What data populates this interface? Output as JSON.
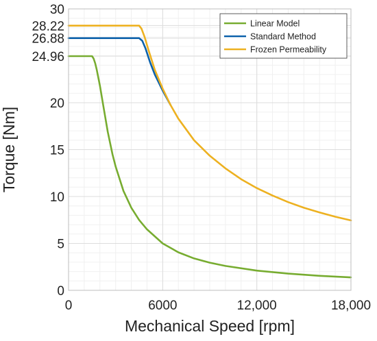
{
  "chart_data": {
    "type": "line",
    "xlabel": "Mechanical Speed [rpm]",
    "ylabel": "Torque [Nm]",
    "xlim": [
      0,
      18000
    ],
    "ylim": [
      0,
      30
    ],
    "x_ticks": [
      0,
      6000,
      12000,
      18000
    ],
    "x_tick_labels": [
      "0",
      "6000",
      "12,000",
      "18,000"
    ],
    "y_ticks": [
      0,
      5,
      10,
      15,
      20,
      24.96,
      26.88,
      28.22,
      30
    ],
    "y_tick_labels": [
      "0",
      "5",
      "10",
      "15",
      "20",
      "24.96",
      "26.88",
      "28.22",
      "30"
    ],
    "grid": true,
    "minor_grid": true,
    "legend_position": "top-right",
    "series": [
      {
        "name": "Linear Model",
        "color": "#77ac30",
        "x": [
          0,
          1500,
          1600,
          1700,
          1800,
          2000,
          2200,
          2500,
          2800,
          3000,
          3500,
          4000,
          4500,
          5000,
          6000,
          7000,
          8000,
          9000,
          10000,
          12000,
          14000,
          16000,
          18000
        ],
        "y": [
          24.96,
          24.96,
          24.7,
          24.2,
          23.5,
          21.8,
          19.8,
          16.9,
          14.5,
          13.2,
          10.6,
          8.8,
          7.5,
          6.5,
          5.0,
          4.05,
          3.4,
          2.95,
          2.6,
          2.1,
          1.78,
          1.55,
          1.38
        ]
      },
      {
        "name": "Standard Method",
        "color": "#0d62ab",
        "x": [
          0,
          4500,
          4700,
          4900,
          5200,
          5500,
          6000,
          6500
        ],
        "y": [
          26.88,
          26.88,
          26.6,
          25.8,
          24.3,
          23.0,
          21.3,
          19.75
        ]
      },
      {
        "name": "Frozen Permeability",
        "color": "#edb120",
        "x": [
          0,
          4500,
          4650,
          4850,
          5100,
          5500,
          6000,
          6500,
          7000,
          8000,
          9000,
          10000,
          11000,
          12000,
          13000,
          14000,
          15000,
          16000,
          17000,
          18000
        ],
        "y": [
          28.22,
          28.22,
          27.9,
          27.0,
          25.6,
          23.5,
          21.5,
          19.75,
          18.3,
          16.0,
          14.35,
          13.0,
          11.85,
          10.9,
          10.1,
          9.4,
          8.8,
          8.3,
          7.85,
          7.45
        ]
      }
    ]
  }
}
